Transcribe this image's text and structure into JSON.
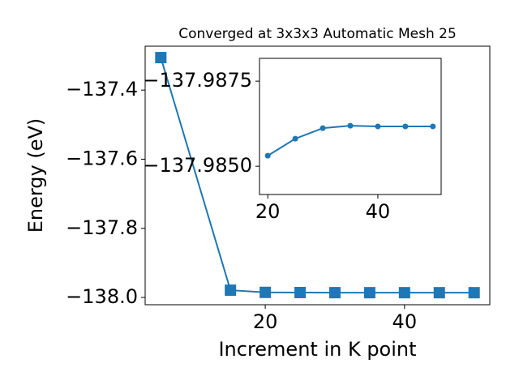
{
  "chart_data": [
    {
      "type": "line",
      "title": "Converged at 3x3x3 Automatic Mesh 25",
      "xlabel": "Increment in K point",
      "ylabel": "Energy (eV)",
      "x": [
        5,
        15,
        20,
        25,
        30,
        35,
        40,
        45,
        50
      ],
      "series": [
        {
          "color": "#1f77b4",
          "marker": "square",
          "values": [
            -137.306,
            -137.979,
            -137.9853,
            -137.9858,
            -137.9861,
            -137.9862,
            -137.9862,
            -137.9862,
            -137.9862
          ]
        }
      ],
      "xlim": [
        2.75,
        52.25
      ],
      "ylim": [
        -138.021,
        -137.273
      ],
      "xticks": [
        20,
        40
      ],
      "yticks": [
        {
          "value": -138.0,
          "label": "−138.0"
        },
        {
          "value": -137.8,
          "label": "−137.8"
        },
        {
          "value": -137.6,
          "label": "−137.6"
        },
        {
          "value": -137.4,
          "label": "−137.4"
        }
      ]
    },
    {
      "type": "line",
      "x": [
        20,
        25,
        30,
        35,
        40,
        45,
        50
      ],
      "series": [
        {
          "color": "#1f77b4",
          "marker": "circle",
          "values": [
            -137.98531,
            -137.98581,
            -137.98612,
            -137.98619,
            -137.98617,
            -137.98617,
            -137.98617
          ]
        }
      ],
      "xlim": [
        18.5,
        51.5
      ],
      "ylim": [
        -137.98417,
        -137.98817
      ],
      "xticks": [
        20,
        40
      ],
      "yticks": [
        {
          "value": -137.985,
          "label": "−137.9850"
        },
        {
          "value": -137.9875,
          "label": "−137.9875"
        }
      ]
    }
  ]
}
